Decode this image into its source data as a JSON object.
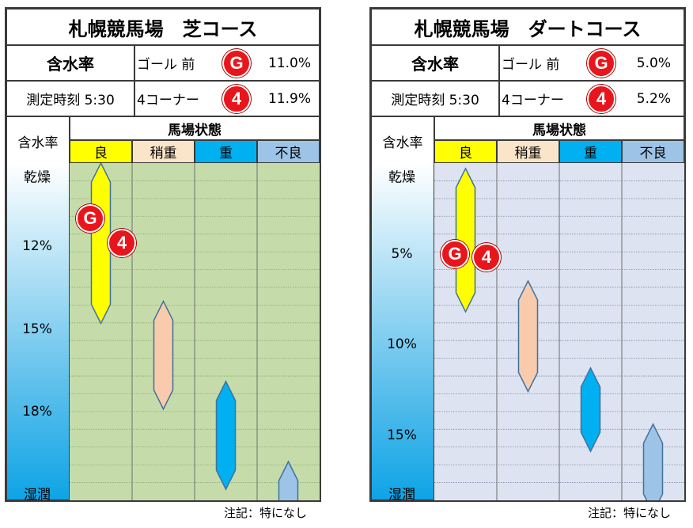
{
  "turf": {
    "title": "札幌競馬場　芝コース",
    "moisture_label": "含水率",
    "measure_time": "測定時刻 5:30",
    "goal_label": "ゴール 前",
    "goal_marker": "G",
    "goal_value": "11.0%",
    "corner_label": "4コーナー",
    "corner_marker": "4",
    "corner_value": "11.9%",
    "axis_label": "含水率",
    "header": "馬場状態",
    "top_label": "乾燥",
    "bottom_label": "湿潤",
    "note": "注記：特になし",
    "colors": {
      "background": "#c5dcaa",
      "grid": "#8aa874"
    }
  },
  "dirt": {
    "title": "札幌競馬場　ダートコース",
    "moisture_label": "含水率",
    "measure_time": "測定時刻 5:30",
    "goal_label": "ゴール 前",
    "goal_marker": "G",
    "goal_value": "5.0%",
    "corner_label": "4コーナー",
    "corner_marker": "4",
    "corner_value": "5.2%",
    "axis_label": "含水率",
    "header": "馬場状態",
    "top_label": "乾燥",
    "bottom_label": "湿潤",
    "note": "注記：特になし",
    "colors": {
      "background": "#dde3f1",
      "grid": "#7d8aa6"
    }
  },
  "chart_data": [
    {
      "type": "range",
      "yaxis_unit": "%",
      "ylim": [
        9.0,
        21.2
      ],
      "yticks": [
        {
          "value": 12,
          "label": "12%"
        },
        {
          "value": 15,
          "label": "15%"
        },
        {
          "value": 18,
          "label": "18%"
        }
      ],
      "categories": [
        {
          "name": "良",
          "min": 9.0,
          "max": 14.8,
          "color": "#ffff00",
          "header_color": "#ffff00"
        },
        {
          "name": "稍重",
          "min": 14.0,
          "max": 17.9,
          "color": "#f8cbad",
          "header_color": "#fbe5c8"
        },
        {
          "name": "重",
          "min": 16.9,
          "max": 20.8,
          "color": "#00b0f0",
          "header_color": "#00b0f0"
        },
        {
          "name": "不良",
          "min": 19.8,
          "max": 21.9,
          "color": "#9dc3e6",
          "header_color": "#9dc3e6"
        }
      ],
      "markers": [
        {
          "label": "G",
          "value": 11.0
        },
        {
          "label": "4",
          "value": 11.9
        }
      ]
    },
    {
      "type": "range",
      "yaxis_unit": "%",
      "ylim": [
        0.0,
        18.6
      ],
      "yticks": [
        {
          "value": 5,
          "label": "5%"
        },
        {
          "value": 10,
          "label": "10%"
        },
        {
          "value": 15,
          "label": "15%"
        }
      ],
      "categories": [
        {
          "name": "良",
          "min": 0.3,
          "max": 8.2,
          "color": "#ffff00",
          "header_color": "#ffff00"
        },
        {
          "name": "稍重",
          "min": 6.5,
          "max": 12.6,
          "color": "#f8cbad",
          "header_color": "#fbe5c8"
        },
        {
          "name": "重",
          "min": 11.3,
          "max": 15.9,
          "color": "#00b0f0",
          "header_color": "#00b0f0"
        },
        {
          "name": "不良",
          "min": 14.4,
          "max": 19.3,
          "color": "#9dc3e6",
          "header_color": "#9dc3e6"
        }
      ],
      "markers": [
        {
          "label": "G",
          "value": 5.0
        },
        {
          "label": "4",
          "value": 5.2
        }
      ]
    }
  ]
}
